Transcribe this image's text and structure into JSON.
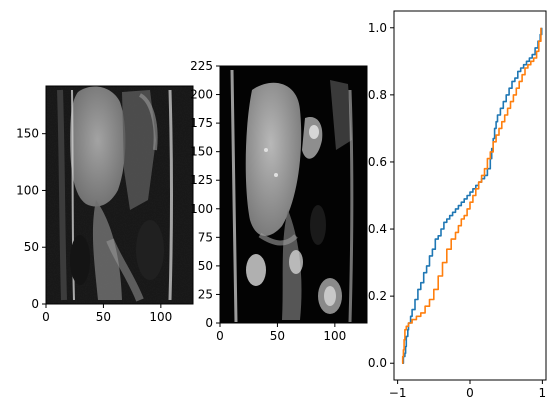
{
  "chart_data": [
    {
      "type": "image",
      "description_none": "",
      "xlim": [
        0,
        128
      ],
      "ylim": [
        0,
        192
      ],
      "xticks": [
        "0",
        "50",
        "100"
      ],
      "xtick_values": [
        0,
        50,
        100
      ],
      "yticks": [
        "0",
        "50",
        "100",
        "150"
      ],
      "ytick_values": [
        0,
        50,
        100,
        150
      ]
    },
    {
      "type": "image",
      "xlim": [
        0,
        128
      ],
      "ylim": [
        0,
        225
      ],
      "xticks": [
        "0",
        "50",
        "100"
      ],
      "xtick_values": [
        0,
        50,
        100
      ],
      "yticks": [
        "0",
        "25",
        "50",
        "75",
        "100",
        "125",
        "150",
        "175",
        "200",
        "225"
      ],
      "ytick_values": [
        0,
        25,
        50,
        75,
        100,
        125,
        150,
        175,
        200,
        225
      ]
    },
    {
      "type": "line",
      "xlim": [
        -1.05,
        1.05
      ],
      "ylim": [
        -0.05,
        1.05
      ],
      "xticks": [
        "−1",
        "0",
        "1"
      ],
      "xtick_values": [
        -1,
        0,
        1
      ],
      "yticks": [
        "0.0",
        "0.2",
        "0.4",
        "0.6",
        "0.8",
        "1.0"
      ],
      "ytick_values": [
        0,
        0.2,
        0.4,
        0.6,
        0.8,
        1.0
      ],
      "series": [
        {
          "color": "#1f77b4",
          "x": [
            -0.93,
            -0.92,
            -0.9,
            -0.89,
            -0.88,
            -0.86,
            -0.85,
            -0.82,
            -0.8,
            -0.76,
            -0.72,
            -0.68,
            -0.64,
            -0.6,
            -0.56,
            -0.52,
            -0.48,
            -0.44,
            -0.4,
            -0.36,
            -0.32,
            -0.28,
            -0.24,
            -0.2,
            -0.16,
            -0.12,
            -0.08,
            -0.04,
            0.0,
            0.04,
            0.08,
            0.12,
            0.16,
            0.2,
            0.24,
            0.28,
            0.3,
            0.32,
            0.34,
            0.36,
            0.38,
            0.42,
            0.46,
            0.5,
            0.54,
            0.58,
            0.62,
            0.66,
            0.7,
            0.74,
            0.78,
            0.82,
            0.86,
            0.9,
            0.94,
            0.97,
            0.99
          ],
          "y": [
            0.0,
            0.02,
            0.03,
            0.05,
            0.08,
            0.1,
            0.12,
            0.14,
            0.16,
            0.19,
            0.22,
            0.24,
            0.27,
            0.29,
            0.32,
            0.34,
            0.37,
            0.38,
            0.4,
            0.42,
            0.43,
            0.44,
            0.45,
            0.46,
            0.47,
            0.48,
            0.49,
            0.5,
            0.51,
            0.52,
            0.53,
            0.54,
            0.55,
            0.56,
            0.58,
            0.61,
            0.64,
            0.67,
            0.7,
            0.72,
            0.74,
            0.76,
            0.78,
            0.8,
            0.82,
            0.84,
            0.85,
            0.87,
            0.88,
            0.89,
            0.9,
            0.91,
            0.92,
            0.94,
            0.96,
            0.98,
            1.0
          ]
        },
        {
          "color": "#ff7f0e",
          "x": [
            -0.94,
            -0.93,
            -0.92,
            -0.91,
            -0.9,
            -0.88,
            -0.85,
            -0.8,
            -0.74,
            -0.68,
            -0.62,
            -0.56,
            -0.5,
            -0.44,
            -0.38,
            -0.32,
            -0.26,
            -0.2,
            -0.16,
            -0.12,
            -0.08,
            -0.04,
            0.0,
            0.04,
            0.08,
            0.12,
            0.16,
            0.2,
            0.24,
            0.28,
            0.32,
            0.36,
            0.4,
            0.44,
            0.48,
            0.52,
            0.56,
            0.6,
            0.64,
            0.68,
            0.72,
            0.76,
            0.8,
            0.84,
            0.88,
            0.92,
            0.95,
            0.98
          ],
          "y": [
            0.0,
            0.02,
            0.04,
            0.07,
            0.1,
            0.11,
            0.12,
            0.13,
            0.14,
            0.15,
            0.17,
            0.19,
            0.22,
            0.26,
            0.3,
            0.34,
            0.37,
            0.39,
            0.41,
            0.43,
            0.44,
            0.46,
            0.48,
            0.5,
            0.52,
            0.54,
            0.56,
            0.58,
            0.61,
            0.63,
            0.66,
            0.68,
            0.7,
            0.72,
            0.74,
            0.76,
            0.78,
            0.8,
            0.82,
            0.84,
            0.86,
            0.88,
            0.89,
            0.9,
            0.91,
            0.93,
            0.96,
            1.0
          ]
        }
      ]
    }
  ]
}
